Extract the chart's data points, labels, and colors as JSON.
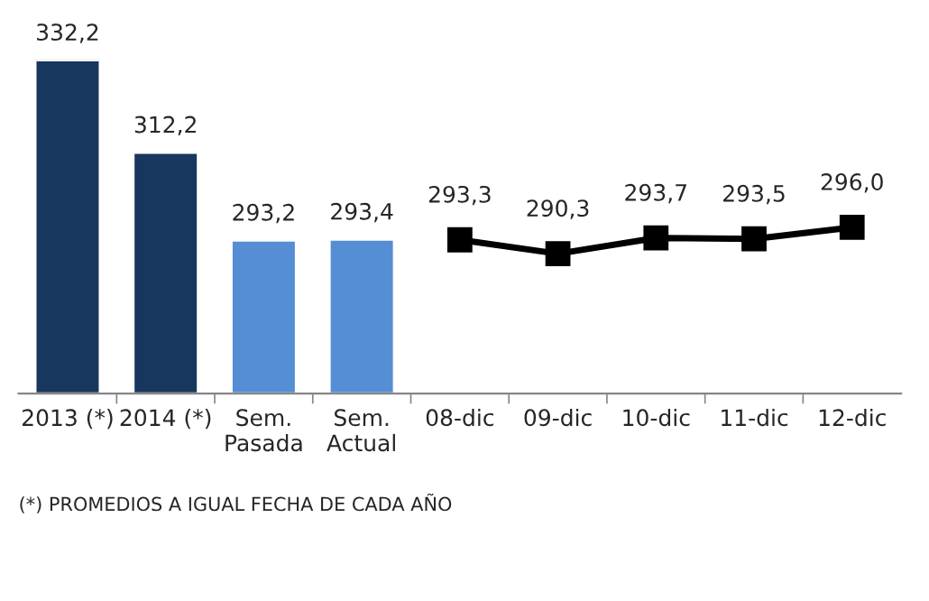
{
  "chart_data": {
    "type": "bar",
    "categories": [
      "2013 (*)",
      "2014 (*)",
      "Sem.\nPasada",
      "Sem.\nActual",
      "08-dic",
      "09-dic",
      "10-dic",
      "11-dic",
      "12-dic"
    ],
    "series": [
      {
        "colors": [
          "#17375e",
          "#17375e",
          "#558ed5",
          "#558ed5",
          null,
          null,
          null,
          null,
          null
        ],
        "values": [
          332.2,
          312.2,
          293.2,
          293.4,
          null,
          null,
          null,
          null,
          null
        ],
        "value_labels": [
          "332,2",
          "312,2",
          "293,2",
          "293,4",
          null,
          null,
          null,
          null,
          null
        ]
      },
      {
        "type": "line",
        "color": "#000000",
        "marker": "square",
        "line_style": "solid",
        "values": [
          null,
          null,
          null,
          null,
          293.3,
          290.3,
          293.7,
          293.5,
          296.0
        ],
        "value_labels": [
          null,
          null,
          null,
          null,
          "293,3",
          "290,3",
          "293,7",
          "293,5",
          "296,0"
        ]
      }
    ],
    "ylim": [
      260,
      332.2
    ],
    "tick_labels": "x",
    "grid": false,
    "legend": false,
    "annotations": [
      "(*) PROMEDIOS A IGUAL FECHA DE CADA AÑO"
    ]
  }
}
